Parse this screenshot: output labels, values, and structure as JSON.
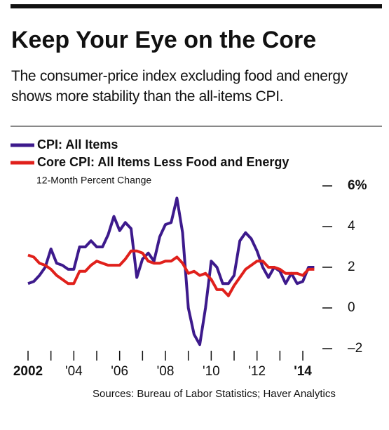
{
  "chart_data": {
    "type": "line",
    "title": "Keep Your Eye on the Core",
    "subtitle": "The consumer-price index excluding food and energy shows more stability than the all-items CPI.",
    "ylabel": "12-Month Percent Change",
    "source": "Sources: Bureau of Labor Statistics; Haver Analytics",
    "x": [
      2002,
      2002.25,
      2002.5,
      2002.75,
      2003,
      2003.25,
      2003.5,
      2003.75,
      2004,
      2004.25,
      2004.5,
      2004.75,
      2005,
      2005.25,
      2005.5,
      2005.75,
      2006,
      2006.25,
      2006.5,
      2006.75,
      2007,
      2007.25,
      2007.5,
      2007.75,
      2008,
      2008.25,
      2008.5,
      2008.75,
      2009,
      2009.25,
      2009.5,
      2009.75,
      2010,
      2010.25,
      2010.5,
      2010.75,
      2011,
      2011.25,
      2011.5,
      2011.75,
      2012,
      2012.25,
      2012.5,
      2012.75,
      2013,
      2013.25,
      2013.5,
      2013.75,
      2014,
      2014.25,
      2014.5
    ],
    "series": [
      {
        "name": "CPI: All Items",
        "color": "#3d1a8c",
        "values": [
          1.2,
          1.3,
          1.6,
          2.0,
          2.9,
          2.2,
          2.1,
          1.9,
          1.9,
          3.0,
          3.0,
          3.3,
          3.0,
          3.0,
          3.6,
          4.5,
          3.8,
          4.2,
          3.9,
          1.5,
          2.4,
          2.7,
          2.3,
          3.5,
          4.1,
          4.2,
          5.4,
          3.7,
          0.0,
          -1.3,
          -1.8,
          0.0,
          2.3,
          2.0,
          1.2,
          1.2,
          1.6,
          3.3,
          3.7,
          3.4,
          2.8,
          2.0,
          1.5,
          2.0,
          1.8,
          1.2,
          1.7,
          1.2,
          1.3,
          2.0,
          2.0
        ]
      },
      {
        "name": "Core CPI: All Items Less Food and Energy",
        "color": "#e0201b",
        "values": [
          2.6,
          2.5,
          2.2,
          2.1,
          1.9,
          1.6,
          1.4,
          1.2,
          1.2,
          1.8,
          1.8,
          2.1,
          2.3,
          2.2,
          2.1,
          2.1,
          2.1,
          2.4,
          2.8,
          2.8,
          2.7,
          2.3,
          2.2,
          2.2,
          2.3,
          2.3,
          2.5,
          2.2,
          1.7,
          1.8,
          1.6,
          1.7,
          1.4,
          0.9,
          0.9,
          0.6,
          1.1,
          1.5,
          1.9,
          2.1,
          2.3,
          2.3,
          2.0,
          2.0,
          1.9,
          1.7,
          1.7,
          1.7,
          1.6,
          1.9,
          1.9
        ]
      }
    ],
    "xlim": [
      2002,
      2014.6
    ],
    "xticks": [
      2002,
      {
        "value": 2004,
        "label": "'04"
      },
      {
        "value": 2006,
        "label": "'06"
      },
      {
        "value": 2008,
        "label": "'08"
      },
      {
        "value": 2010,
        "label": "'10"
      },
      {
        "value": 2012,
        "label": "'12"
      },
      {
        "value": 2014,
        "label": "'14"
      }
    ],
    "xminorticks": [
      2003,
      2005,
      2007,
      2009,
      2011,
      2013
    ],
    "ylim": [
      -2.2,
      6.2
    ],
    "yticks": [
      {
        "value": -2,
        "label": "–2"
      },
      0,
      2,
      4,
      {
        "value": 6,
        "label": "6%"
      }
    ],
    "legend": "top-left"
  }
}
